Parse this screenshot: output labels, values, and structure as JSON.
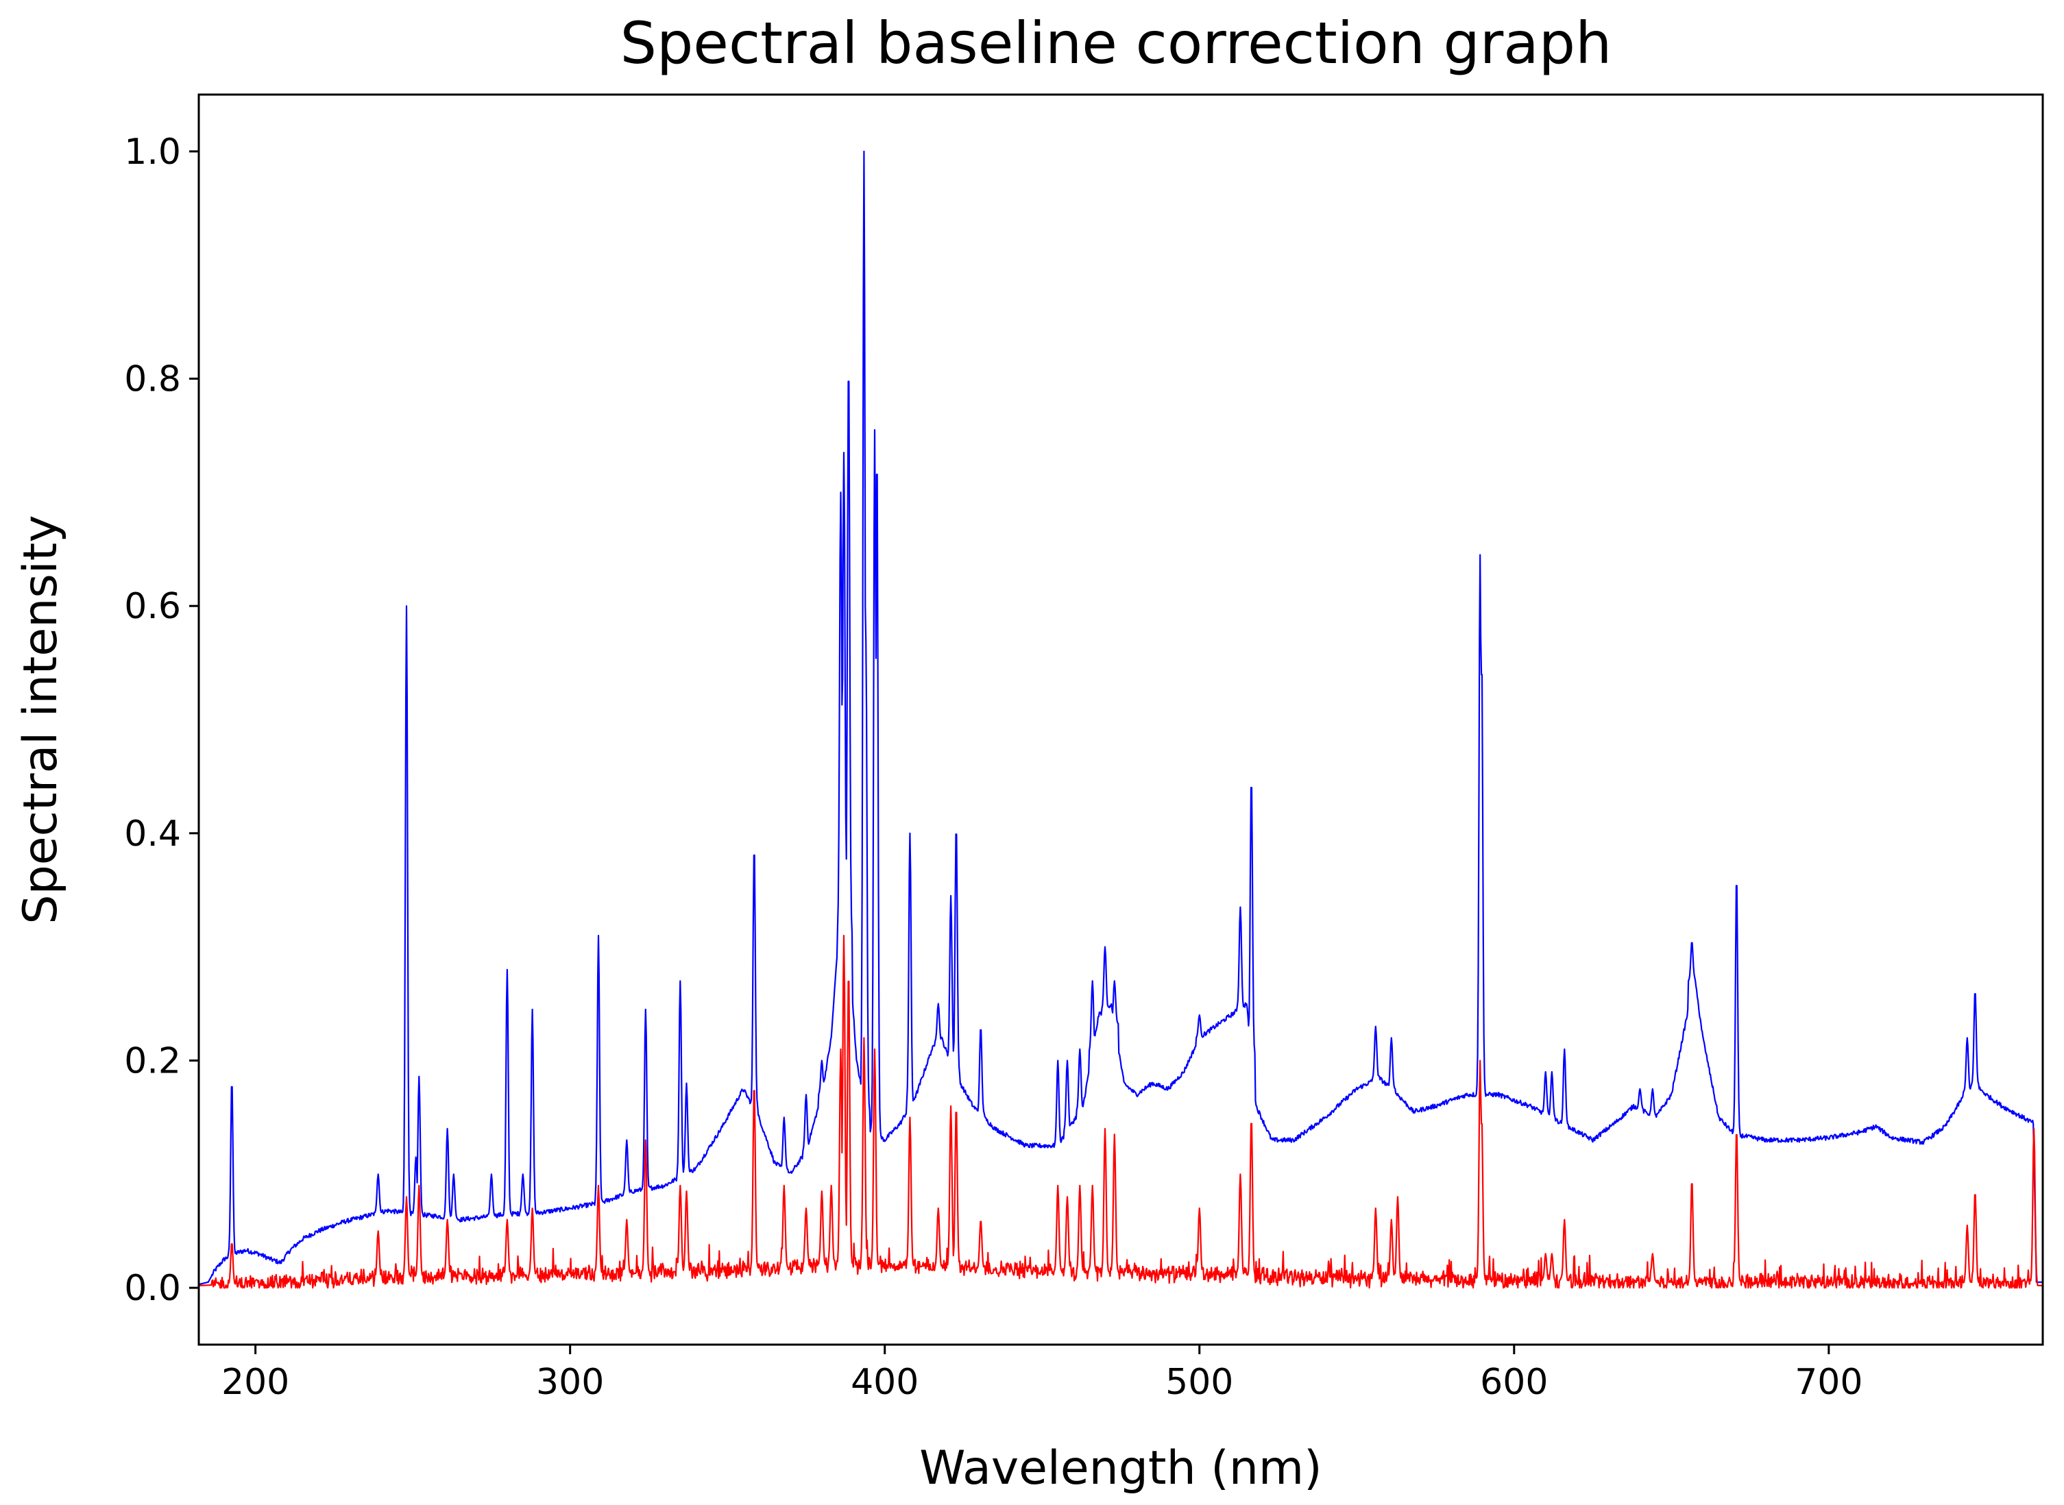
{
  "chart_data": {
    "type": "line",
    "title": "Spectral baseline correction graph",
    "xlabel": "Wavelength (nm)",
    "ylabel": "Spectral intensity",
    "xlim": [
      182,
      768
    ],
    "ylim": [
      -0.05,
      1.05
    ],
    "xticks": [
      200,
      300,
      400,
      500,
      600,
      700
    ],
    "yticks": [
      0.0,
      0.2,
      0.4,
      0.6,
      0.8,
      1.0
    ],
    "xtick_labels": [
      "200",
      "300",
      "400",
      "500",
      "600",
      "700"
    ],
    "ytick_labels": [
      "0.0",
      "0.2",
      "0.4",
      "0.6",
      "0.8",
      "1.0"
    ],
    "grid": false,
    "legend": "none",
    "series": [
      {
        "color": "#0000ff",
        "baseline": [
          [
            182,
            0.003
          ],
          [
            185,
            0.005
          ],
          [
            187,
            0.015
          ],
          [
            190,
            0.025
          ],
          [
            193,
            0.03
          ],
          [
            197,
            0.033
          ],
          [
            201,
            0.03
          ],
          [
            205,
            0.025
          ],
          [
            208,
            0.022
          ],
          [
            211,
            0.033
          ],
          [
            215,
            0.043
          ],
          [
            220,
            0.05
          ],
          [
            228,
            0.058
          ],
          [
            235,
            0.063
          ],
          [
            242,
            0.068
          ],
          [
            250,
            0.065
          ],
          [
            258,
            0.063
          ],
          [
            265,
            0.06
          ],
          [
            272,
            0.062
          ],
          [
            280,
            0.065
          ],
          [
            290,
            0.066
          ],
          [
            300,
            0.07
          ],
          [
            310,
            0.075
          ],
          [
            320,
            0.085
          ],
          [
            330,
            0.09
          ],
          [
            340,
            0.105
          ],
          [
            348,
            0.14
          ],
          [
            355,
            0.175
          ],
          [
            360,
            0.15
          ],
          [
            365,
            0.11
          ],
          [
            370,
            0.1
          ],
          [
            375,
            0.12
          ],
          [
            380,
            0.17
          ],
          [
            383,
            0.22
          ],
          [
            385,
            0.3
          ],
          [
            388,
            0.33
          ],
          [
            391,
            0.2
          ],
          [
            395,
            0.14
          ],
          [
            400,
            0.13
          ],
          [
            405,
            0.145
          ],
          [
            410,
            0.17
          ],
          [
            415,
            0.21
          ],
          [
            418,
            0.22
          ],
          [
            422,
            0.19
          ],
          [
            428,
            0.16
          ],
          [
            435,
            0.14
          ],
          [
            445,
            0.125
          ],
          [
            455,
            0.125
          ],
          [
            463,
            0.16
          ],
          [
            468,
            0.24
          ],
          [
            472,
            0.25
          ],
          [
            476,
            0.18
          ],
          [
            480,
            0.17
          ],
          [
            485,
            0.18
          ],
          [
            490,
            0.175
          ],
          [
            495,
            0.19
          ],
          [
            500,
            0.22
          ],
          [
            505,
            0.23
          ],
          [
            510,
            0.24
          ],
          [
            515,
            0.25
          ],
          [
            518,
            0.16
          ],
          [
            523,
            0.13
          ],
          [
            530,
            0.13
          ],
          [
            540,
            0.15
          ],
          [
            550,
            0.175
          ],
          [
            557,
            0.185
          ],
          [
            563,
            0.17
          ],
          [
            568,
            0.155
          ],
          [
            575,
            0.16
          ],
          [
            585,
            0.17
          ],
          [
            595,
            0.17
          ],
          [
            605,
            0.16
          ],
          [
            615,
            0.145
          ],
          [
            625,
            0.13
          ],
          [
            632,
            0.145
          ],
          [
            638,
            0.16
          ],
          [
            645,
            0.15
          ],
          [
            650,
            0.17
          ],
          [
            655,
            0.24
          ],
          [
            657,
            0.28
          ],
          [
            660,
            0.22
          ],
          [
            665,
            0.15
          ],
          [
            670,
            0.135
          ],
          [
            680,
            0.13
          ],
          [
            690,
            0.13
          ],
          [
            700,
            0.132
          ],
          [
            710,
            0.137
          ],
          [
            715,
            0.142
          ],
          [
            720,
            0.132
          ],
          [
            730,
            0.128
          ],
          [
            737,
            0.142
          ],
          [
            742,
            0.165
          ],
          [
            746,
            0.18
          ],
          [
            750,
            0.17
          ],
          [
            755,
            0.16
          ],
          [
            763,
            0.148
          ],
          [
            765,
            0.145
          ],
          [
            766,
            0.005
          ],
          [
            768,
            0.005
          ]
        ],
        "peaks": [
          [
            192.5,
            0.183
          ],
          [
            239,
            0.1
          ],
          [
            248,
            0.6
          ],
          [
            251,
            0.115
          ],
          [
            252,
            0.186
          ],
          [
            261,
            0.14
          ],
          [
            263,
            0.1
          ],
          [
            275,
            0.1
          ],
          [
            280,
            0.28
          ],
          [
            285,
            0.1
          ],
          [
            288,
            0.245
          ],
          [
            309,
            0.31
          ],
          [
            318,
            0.13
          ],
          [
            324,
            0.245
          ],
          [
            335,
            0.27
          ],
          [
            337,
            0.18
          ],
          [
            358.5,
            0.39
          ],
          [
            368,
            0.15
          ],
          [
            375,
            0.17
          ],
          [
            380,
            0.2
          ],
          [
            386,
            0.7
          ],
          [
            387,
            0.735
          ],
          [
            388.5,
            0.818
          ],
          [
            393.4,
            1.0
          ],
          [
            394,
            0.57
          ],
          [
            396.8,
            0.755
          ],
          [
            397.5,
            0.74
          ],
          [
            408,
            0.4
          ],
          [
            417,
            0.25
          ],
          [
            421,
            0.345
          ],
          [
            422.7,
            0.408
          ],
          [
            430.5,
            0.23
          ],
          [
            455,
            0.2
          ],
          [
            458,
            0.2
          ],
          [
            462,
            0.21
          ],
          [
            466,
            0.27
          ],
          [
            470,
            0.3
          ],
          [
            473,
            0.27
          ],
          [
            500,
            0.24
          ],
          [
            513,
            0.335
          ],
          [
            516.5,
            0.45
          ],
          [
            556,
            0.23
          ],
          [
            561,
            0.22
          ],
          [
            589.2,
            0.645
          ],
          [
            589.7,
            0.555
          ],
          [
            610,
            0.19
          ],
          [
            612,
            0.19
          ],
          [
            616,
            0.21
          ],
          [
            640,
            0.175
          ],
          [
            644,
            0.175
          ],
          [
            656.5,
            0.305
          ],
          [
            670.7,
            0.363
          ],
          [
            744,
            0.22
          ],
          [
            746.5,
            0.262
          ]
        ]
      },
      {
        "color": "#ff0000",
        "baseline": [
          [
            182,
            0.002
          ],
          [
            210,
            0.005
          ],
          [
            250,
            0.01
          ],
          [
            300,
            0.012
          ],
          [
            350,
            0.015
          ],
          [
            380,
            0.02
          ],
          [
            400,
            0.02
          ],
          [
            450,
            0.015
          ],
          [
            500,
            0.012
          ],
          [
            550,
            0.008
          ],
          [
            600,
            0.006
          ],
          [
            650,
            0.005
          ],
          [
            700,
            0.005
          ],
          [
            765,
            0.004
          ],
          [
            766,
            0.002
          ],
          [
            768,
            0.002
          ]
        ],
        "peaks": [
          [
            192.5,
            0.04
          ],
          [
            239,
            0.05
          ],
          [
            248,
            0.08
          ],
          [
            252,
            0.09
          ],
          [
            261,
            0.06
          ],
          [
            280,
            0.06
          ],
          [
            288,
            0.07
          ],
          [
            309,
            0.09
          ],
          [
            318,
            0.06
          ],
          [
            324,
            0.13
          ],
          [
            335,
            0.09
          ],
          [
            337,
            0.085
          ],
          [
            358.5,
            0.18
          ],
          [
            368,
            0.09
          ],
          [
            375,
            0.07
          ],
          [
            380,
            0.085
          ],
          [
            383,
            0.09
          ],
          [
            386,
            0.21
          ],
          [
            387,
            0.31
          ],
          [
            388.5,
            0.28
          ],
          [
            393.4,
            0.22
          ],
          [
            396.8,
            0.21
          ],
          [
            408,
            0.15
          ],
          [
            417,
            0.07
          ],
          [
            421,
            0.16
          ],
          [
            422.7,
            0.16
          ],
          [
            430.5,
            0.06
          ],
          [
            455,
            0.09
          ],
          [
            458,
            0.08
          ],
          [
            462,
            0.09
          ],
          [
            466,
            0.09
          ],
          [
            470,
            0.14
          ],
          [
            473,
            0.135
          ],
          [
            500,
            0.07
          ],
          [
            513,
            0.1
          ],
          [
            516.5,
            0.15
          ],
          [
            556,
            0.07
          ],
          [
            561,
            0.06
          ],
          [
            563,
            0.08
          ],
          [
            589.2,
            0.2
          ],
          [
            589.7,
            0.15
          ],
          [
            610,
            0.03
          ],
          [
            612,
            0.03
          ],
          [
            616,
            0.06
          ],
          [
            644,
            0.03
          ],
          [
            656.5,
            0.095
          ],
          [
            670.7,
            0.14
          ],
          [
            744,
            0.055
          ],
          [
            746.5,
            0.085
          ],
          [
            765.2,
            0.14
          ]
        ]
      }
    ]
  }
}
